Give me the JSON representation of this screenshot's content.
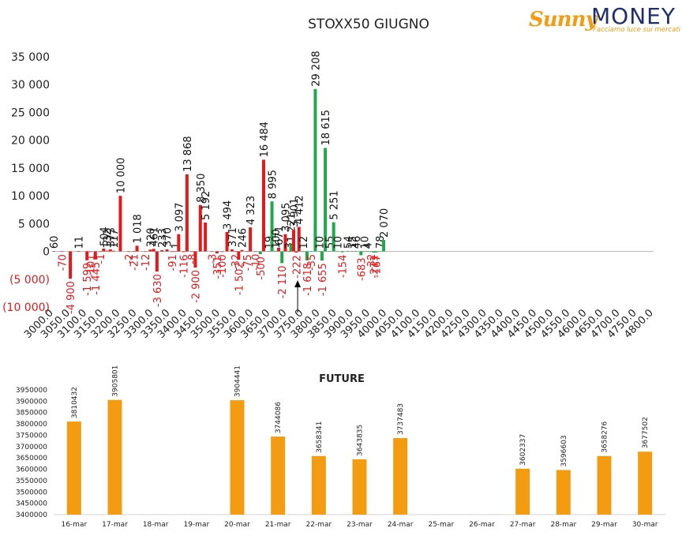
{
  "logo": {
    "brand_part1": "Sunny",
    "brand_part2": "MONEY",
    "tagline": "Facciamo luce sui mercati"
  },
  "chart_data": [
    {
      "type": "bar",
      "title": "STOXX50 GIUGNO",
      "xlabel": "",
      "ylabel": "",
      "ylim": [
        -10000,
        35000
      ],
      "yticks": [
        -10000,
        -5000,
        0,
        5000,
        10000,
        15000,
        20000,
        25000,
        30000,
        35000
      ],
      "ytick_labels": [
        "(10 000)",
        "(5 000)",
        "0",
        "5 000",
        "10 000",
        "15 000",
        "20 000",
        "25 000",
        "30 000",
        "35 000"
      ],
      "categories": [
        "3000.0",
        "3050.0",
        "3100.0",
        "3150.0",
        "3200.0",
        "3250.0",
        "3300.0",
        "3350.0",
        "3400.0",
        "3450.0",
        "3500.0",
        "3550.0",
        "3600.0",
        "3650.0",
        "3700.0",
        "3750.0",
        "3800.0",
        "3850.0",
        "3900.0",
        "3950.0",
        "4000.0",
        "4050.0",
        "4100.0",
        "4150.0",
        "4200.0",
        "4250.0",
        "4300.0",
        "4350.0",
        "4400.0",
        "4450.0",
        "4500.0",
        "4550.0",
        "4600.0",
        "4650.0",
        "4700.0",
        "4750.0",
        "4800.0"
      ],
      "bars": [
        {
          "strike": 3000,
          "value": 60,
          "label": "60",
          "color": "#e31a1c"
        },
        {
          "strike": 3025,
          "value": -70,
          "label": "-70",
          "color": "#e31a1c"
        },
        {
          "strike": 3050,
          "value": -4900,
          "label": "-4 900",
          "color": "#e31a1c"
        },
        {
          "strike": 3075,
          "value": 11,
          "label": "11",
          "color": "#e31a1c"
        },
        {
          "strike": 3100,
          "value": -1599,
          "label": "-1 599",
          "color": "#e31a1c"
        },
        {
          "strike": 3110,
          "value": -101,
          "label": "-101",
          "color": "#e31a1c"
        },
        {
          "strike": 3125,
          "value": -1445,
          "label": "-1 445",
          "color": "#e31a1c"
        },
        {
          "strike": 3140,
          "value": -1,
          "label": "-1",
          "color": "#e31a1c"
        },
        {
          "strike": 3150,
          "value": 504,
          "label": "504",
          "color": "#e31a1c"
        },
        {
          "strike": 3160,
          "value": 132,
          "label": "132",
          "color": "#e31a1c"
        },
        {
          "strike": 3170,
          "value": 373,
          "label": "373",
          "color": "#e31a1c"
        },
        {
          "strike": 3180,
          "value": 117,
          "label": "117",
          "color": "#e31a1c"
        },
        {
          "strike": 3200,
          "value": 10000,
          "label": "10 000",
          "color": "#e31a1c"
        },
        {
          "strike": 3225,
          "value": -2,
          "label": "-2",
          "color": "#e31a1c"
        },
        {
          "strike": 3240,
          "value": -21,
          "label": "-21",
          "color": "#e31a1c"
        },
        {
          "strike": 3250,
          "value": 1018,
          "label": "1 018",
          "color": "#e31a1c"
        },
        {
          "strike": 3275,
          "value": -12,
          "label": "-12",
          "color": "#e31a1c"
        },
        {
          "strike": 3290,
          "value": 320,
          "label": "320",
          "color": "#e31a1c"
        },
        {
          "strike": 3300,
          "value": 461,
          "label": "461",
          "color": "#e31a1c"
        },
        {
          "strike": 3310,
          "value": -3630,
          "label": "-3 630",
          "color": "#e31a1c"
        },
        {
          "strike": 3325,
          "value": 233,
          "label": "233",
          "color": "#e31a1c"
        },
        {
          "strike": 3340,
          "value": 370,
          "label": "370",
          "color": "#e31a1c"
        },
        {
          "strike": 3355,
          "value": -91,
          "label": "-91",
          "color": "#e31a1c"
        },
        {
          "strike": 3365,
          "value": 1,
          "label": "1",
          "color": "#e31a1c"
        },
        {
          "strike": 3375,
          "value": 3097,
          "label": "3 097",
          "color": "#e31a1c"
        },
        {
          "strike": 3390,
          "value": -116,
          "label": "-116",
          "color": "#e31a1c"
        },
        {
          "strike": 3400,
          "value": 13868,
          "label": "13 868",
          "color": "#e31a1c"
        },
        {
          "strike": 3415,
          "value": -8,
          "label": "-8",
          "color": "#e31a1c"
        },
        {
          "strike": 3425,
          "value": -2900,
          "label": "-2 900",
          "color": "#e31a1c"
        },
        {
          "strike": 3440,
          "value": 8350,
          "label": "8 350",
          "color": "#e31a1c"
        },
        {
          "strike": 3455,
          "value": 5192,
          "label": "5 192",
          "color": "#e31a1c"
        },
        {
          "strike": 3475,
          "value": -3,
          "label": "-3",
          "color": "#e31a1c"
        },
        {
          "strike": 3490,
          "value": -351,
          "label": "-351",
          "color": "#e31a1c"
        },
        {
          "strike": 3505,
          "value": -100,
          "label": "-100",
          "color": "#e31a1c"
        },
        {
          "strike": 3520,
          "value": 3494,
          "label": "3 494",
          "color": "#e31a1c"
        },
        {
          "strike": 3535,
          "value": 371,
          "label": "371",
          "color": "#e31a1c"
        },
        {
          "strike": 3545,
          "value": -32,
          "label": "-32",
          "color": "#e31a1c"
        },
        {
          "strike": 3555,
          "value": -1502,
          "label": "-1 502",
          "color": "#e31a1c"
        },
        {
          "strike": 3565,
          "value": 246,
          "label": "246",
          "color": "#e31a1c"
        },
        {
          "strike": 3580,
          "value": -75,
          "label": "-75",
          "color": "#e31a1c"
        },
        {
          "strike": 3590,
          "value": 4323,
          "label": "4 323",
          "color": "#e31a1c"
        },
        {
          "strike": 3605,
          "value": -10,
          "label": "-10",
          "color": "#e31a1c"
        },
        {
          "strike": 3620,
          "value": -500,
          "label": "-500",
          "color": "#20a84a"
        },
        {
          "strike": 3630,
          "value": 16484,
          "label": "16 484",
          "color": "#e31a1c"
        },
        {
          "strike": 3645,
          "value": 19,
          "label": "19",
          "color": "#20a84a"
        },
        {
          "strike": 3655,
          "value": 8995,
          "label": "8 995",
          "color": "#20a84a"
        },
        {
          "strike": 3665,
          "value": 100,
          "label": "100",
          "color": "#20a84a"
        },
        {
          "strike": 3675,
          "value": 671,
          "label": "671",
          "color": "#e31a1c"
        },
        {
          "strike": 3685,
          "value": -2110,
          "label": "-2 110",
          "color": "#20a84a"
        },
        {
          "strike": 3695,
          "value": 3095,
          "label": "3 095",
          "color": "#e31a1c"
        },
        {
          "strike": 3705,
          "value": 3,
          "label": "3",
          "color": "#e31a1c"
        },
        {
          "strike": 3712,
          "value": 1221,
          "label": "1 221",
          "color": "#20a84a"
        },
        {
          "strike": 3720,
          "value": 3901,
          "label": "3 901",
          "color": "#e31a1c"
        },
        {
          "strike": 3728,
          "value": -222,
          "label": "-222",
          "color": "#e31a1c"
        },
        {
          "strike": 3736,
          "value": 4412,
          "label": "4 412",
          "color": "#e31a1c"
        },
        {
          "strike": 3748,
          "value": 12,
          "label": "12",
          "color": "#20a84a"
        },
        {
          "strike": 3760,
          "value": -1618,
          "label": "-1 618",
          "color": "#20a84a"
        },
        {
          "strike": 3772,
          "value": -35,
          "label": "-35",
          "color": "#20a84a"
        },
        {
          "strike": 3785,
          "value": 29208,
          "label": "29 208",
          "color": "#20a84a"
        },
        {
          "strike": 3797,
          "value": 10,
          "label": "10",
          "color": "#20a84a"
        },
        {
          "strike": 3805,
          "value": -1655,
          "label": "-1 655",
          "color": "#20a84a"
        },
        {
          "strike": 3815,
          "value": 18615,
          "label": "18 615",
          "color": "#20a84a"
        },
        {
          "strike": 3827,
          "value": 55,
          "label": "55",
          "color": "#20a84a"
        },
        {
          "strike": 3840,
          "value": 5251,
          "label": "5 251",
          "color": "#20a84a"
        },
        {
          "strike": 3852,
          "value": 10,
          "label": "10",
          "color": "#20a84a"
        },
        {
          "strike": 3866,
          "value": -154,
          "label": "-154",
          "color": "#20a84a"
        },
        {
          "strike": 3882,
          "value": 54,
          "label": "54",
          "color": "#20a84a"
        },
        {
          "strike": 3895,
          "value": 15,
          "label": "15",
          "color": "#20a84a"
        },
        {
          "strike": 3907,
          "value": 46,
          "label": "46",
          "color": "#20a84a"
        },
        {
          "strike": 3922,
          "value": -683,
          "label": "-683",
          "color": "#20a84a"
        },
        {
          "strike": 3932,
          "value": 10,
          "label": "10",
          "color": "#20a84a"
        },
        {
          "strike": 3942,
          "value": 4,
          "label": "4",
          "color": "#20a84a"
        },
        {
          "strike": 3952,
          "value": -32,
          "label": "-32",
          "color": "#20a84a"
        },
        {
          "strike": 3960,
          "value": -211,
          "label": "-211",
          "color": "#20a84a"
        },
        {
          "strike": 3968,
          "value": -167,
          "label": "-167",
          "color": "#20a84a"
        },
        {
          "strike": 3978,
          "value": 78,
          "label": "78",
          "color": "#20a84a"
        },
        {
          "strike": 3990,
          "value": 2070,
          "label": "2 070",
          "color": "#20a84a"
        }
      ],
      "arrow_marker": {
        "strike": 3732
      }
    },
    {
      "type": "bar",
      "title": "FUTURE",
      "xlabel": "",
      "ylabel": "",
      "ylim": [
        3400000,
        3950000
      ],
      "yticks": [
        3400000,
        3450000,
        3500000,
        3550000,
        3600000,
        3650000,
        3700000,
        3750000,
        3800000,
        3850000,
        3900000,
        3950000
      ],
      "categories": [
        "16-mar",
        "17-mar",
        "18-mar",
        "19-mar",
        "20-mar",
        "21-mar",
        "22-mar",
        "23-mar",
        "24-mar",
        "25-mar",
        "26-mar",
        "27-mar",
        "28-mar",
        "29-mar",
        "30-mar"
      ],
      "values": [
        3810432,
        3905801,
        null,
        null,
        3904441,
        3744086,
        3658341,
        3643835,
        3737483,
        null,
        null,
        3602337,
        3596603,
        3658276,
        3677502
      ],
      "labels": [
        "3810432",
        "3905801",
        "",
        "",
        "3904441",
        "3744086",
        "3658341",
        "3643835",
        "3737483",
        "",
        "",
        "3602337",
        "3596603",
        "3658276",
        "3677502"
      ],
      "color": "#f39c12"
    }
  ]
}
